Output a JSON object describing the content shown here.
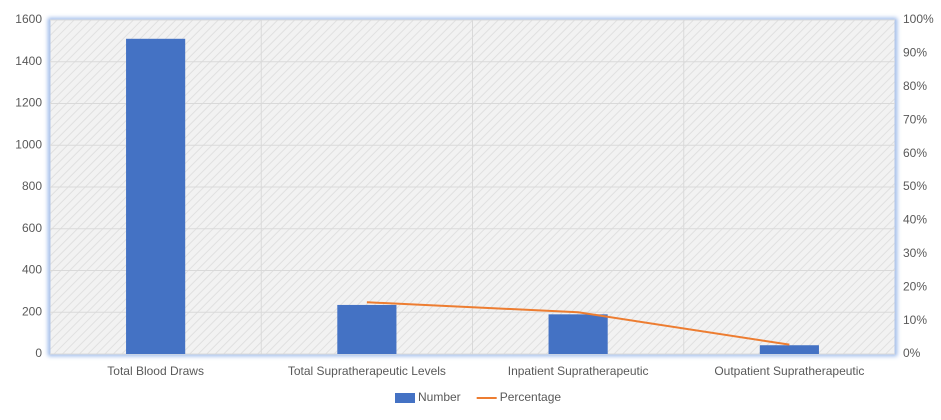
{
  "chart_data": {
    "type": "combo",
    "categories": [
      "Total Blood Draws",
      "Total Supratherapeutic Levels",
      "Inpatient Supratherapeutic",
      "Outpatient Supratherapeutic"
    ],
    "series": [
      {
        "name": "Number",
        "type": "bar",
        "color": "#4472c4",
        "values": [
          1510,
          235,
          190,
          42
        ]
      },
      {
        "name": "Percentage",
        "type": "line",
        "axis": "y2",
        "color": "#ed7d31",
        "values": [
          null,
          15.5,
          12.5,
          2.8
        ]
      }
    ],
    "ylim": [
      0,
      1600
    ],
    "yticks": [
      0,
      200,
      400,
      600,
      800,
      1000,
      1200,
      1400,
      1600
    ],
    "y2lim": [
      0,
      100
    ],
    "y2ticks": [
      {
        "value": 0,
        "label": "0%"
      },
      {
        "value": 10,
        "label": "10%"
      },
      {
        "value": 20,
        "label": "20%"
      },
      {
        "value": 30,
        "label": "30%"
      },
      {
        "value": 40,
        "label": "40%"
      },
      {
        "value": 50,
        "label": "50%"
      },
      {
        "value": 60,
        "label": "60%"
      },
      {
        "value": 70,
        "label": "70%"
      },
      {
        "value": 80,
        "label": "80%"
      },
      {
        "value": 90,
        "label": "90%"
      },
      {
        "value": 100,
        "label": "100%"
      }
    ],
    "grid": true
  }
}
